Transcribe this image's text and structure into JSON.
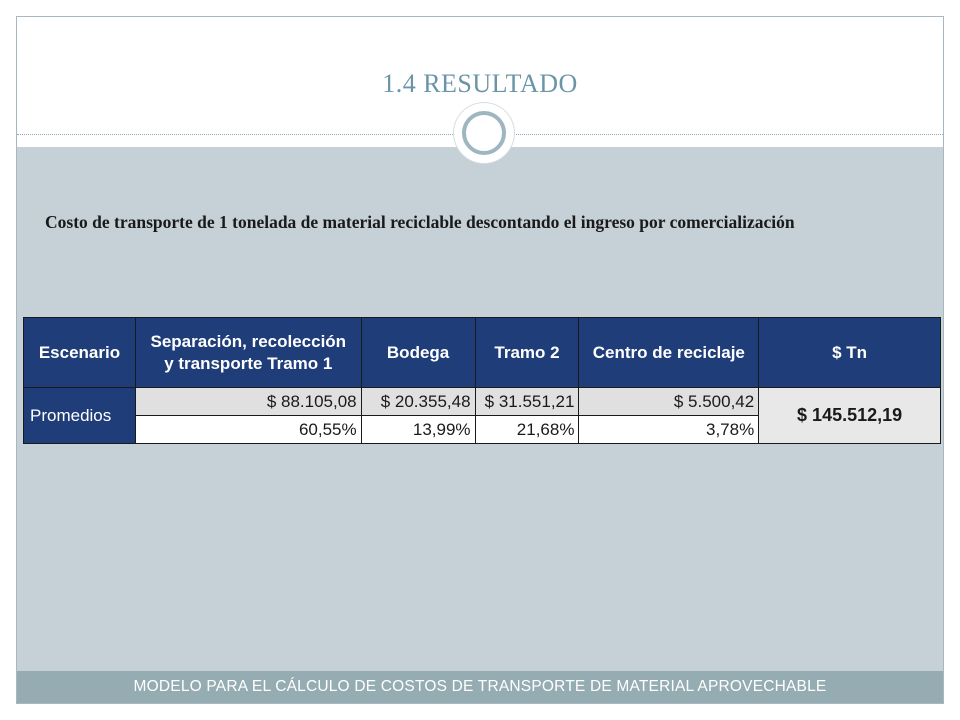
{
  "slide": {
    "title": "1.4 RESULTADO",
    "description": "Costo de transporte de 1 tonelada de material reciclable descontando el ingreso por comercialización",
    "footer": "MODELO PARA EL CÁLCULO DE COSTOS DE TRANSPORTE DE MATERIAL APROVECHABLE"
  },
  "table": {
    "headers": {
      "escenario": "Escenario",
      "separacion_line1": "Separación, recolección",
      "separacion_line2": "y transporte Tramo 1",
      "bodega": "Bodega",
      "tramo2": "Tramo 2",
      "centro": "Centro de reciclaje",
      "tn": "$ Tn"
    },
    "row_label": "Promedios",
    "values": [
      "$ 88.105,08",
      "$ 20.355,48",
      "$ 31.551,21",
      "$ 5.500,42"
    ],
    "percents": [
      "60,55%",
      "13,99%",
      "21,68%",
      "3,78%"
    ],
    "total": "$ 145.512,19"
  },
  "colors": {
    "header_bg": "#1f3e79",
    "content_bg": "#c5d0d7",
    "footer_bg": "#95acb2",
    "title_color": "#6a95a8"
  }
}
